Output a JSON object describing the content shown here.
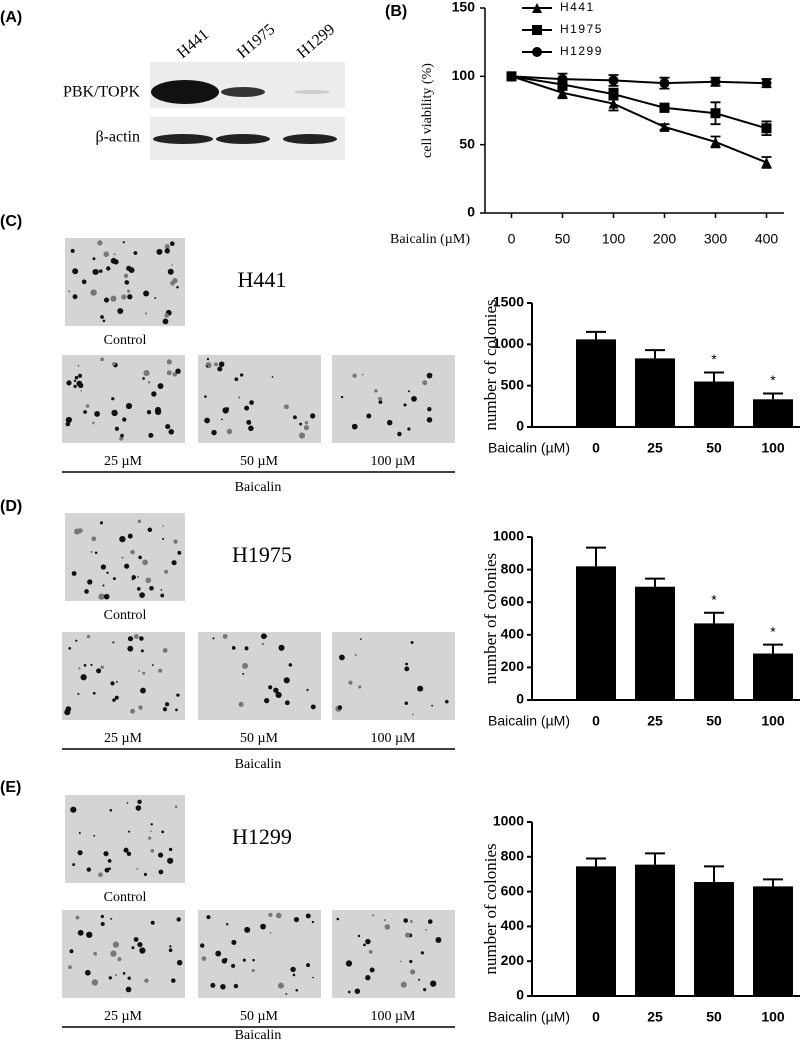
{
  "figure": {
    "panel_labels": [
      "(A)",
      "(B)",
      "(C)",
      "(D)",
      "(E)"
    ],
    "blot": {
      "lanes": [
        "H441",
        "H1975",
        "H1299"
      ],
      "rows": [
        "PBK/TOPK",
        "β-actin"
      ]
    },
    "colony_panels": [
      {
        "cell_line": "H441",
        "control": "Control",
        "doses": [
          "25 µM",
          "50 µM",
          "100 µM"
        ],
        "treatment": "Baicalin"
      },
      {
        "cell_line": "H1975",
        "control": "Control",
        "doses": [
          "25 µM",
          "50 µM",
          "100 µM"
        ],
        "treatment": "Baicalin"
      },
      {
        "cell_line": "H1299",
        "control": "Control",
        "doses": [
          "25 µM",
          "50 µM",
          "100 µM"
        ],
        "treatment": "Baicalin"
      }
    ]
  },
  "chart_data": [
    {
      "type": "line",
      "x_label": "Baicalin (µM)",
      "y_label": "cell viability (%)",
      "categories": [
        "0",
        "50",
        "100",
        "200",
        "300",
        "400"
      ],
      "ylim": [
        0,
        150
      ],
      "yticks": [
        0,
        50,
        100,
        150
      ],
      "legend": "top-left",
      "series": [
        {
          "name": "H441",
          "color": "#000000",
          "marker": "triangle",
          "values": [
            100,
            88,
            80,
            63,
            52,
            37
          ],
          "errors": [
            2,
            4,
            5,
            2,
            4,
            4
          ]
        },
        {
          "name": "H1975",
          "color": "#000000",
          "marker": "square",
          "values": [
            100,
            94,
            87,
            77,
            73,
            62
          ],
          "errors": [
            2,
            4,
            4,
            3,
            8,
            5
          ]
        },
        {
          "name": "H1299",
          "color": "#000000",
          "marker": "circle",
          "values": [
            100,
            98,
            97,
            95,
            96,
            95
          ],
          "errors": [
            2,
            4,
            4,
            4,
            3,
            3
          ]
        }
      ]
    },
    {
      "type": "bar",
      "x_label": "Baicalin (µM)",
      "y_label": "number of colonies",
      "color": "#000000",
      "categories": [
        "0",
        "25",
        "50",
        "100"
      ],
      "values": [
        1060,
        830,
        550,
        335
      ],
      "errors": [
        90,
        100,
        110,
        70
      ],
      "significance": [
        null,
        null,
        "*",
        "*"
      ],
      "ylim": [
        0,
        1500
      ],
      "yticks": [
        0,
        500,
        1000,
        1500
      ]
    },
    {
      "type": "bar",
      "x_label": "Baicalin (µM)",
      "y_label": "number of colonies",
      "color": "#000000",
      "categories": [
        "0",
        "25",
        "50",
        "100"
      ],
      "values": [
        820,
        695,
        470,
        285
      ],
      "errors": [
        115,
        50,
        65,
        55
      ],
      "significance": [
        null,
        null,
        "*",
        "*"
      ],
      "ylim": [
        0,
        1000
      ],
      "yticks": [
        0,
        200,
        400,
        600,
        800,
        1000
      ]
    },
    {
      "type": "bar",
      "x_label": "Baicalin (µM)",
      "y_label": "number of colonies",
      "color": "#000000",
      "categories": [
        "0",
        "25",
        "50",
        "100"
      ],
      "values": [
        745,
        755,
        655,
        630
      ],
      "errors": [
        45,
        65,
        90,
        40
      ],
      "ylim": [
        0,
        1000
      ],
      "yticks": [
        0,
        200,
        400,
        600,
        800,
        1000
      ]
    }
  ]
}
